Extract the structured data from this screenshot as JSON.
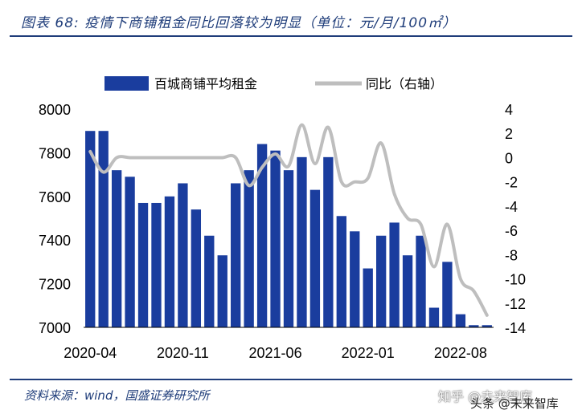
{
  "header": {
    "title": "图表 68: 疫情下商铺租金同比回落较为明显（单位：元/月/100㎡）"
  },
  "footer": {
    "source": "资料来源：wind，国盛证券研究所",
    "watermark_brand": "知乎 @未来智库",
    "watermark_overlay": "头条 @未来智库"
  },
  "colors": {
    "bar": "#1a3d9e",
    "line": "#bebebe",
    "accent": "#1f3d7a"
  },
  "chart_data": {
    "type": "bar+line",
    "x_tick_labels": [
      "2020-04",
      "2020-11",
      "2021-06",
      "2022-01",
      "2022-08"
    ],
    "left_axis": {
      "range": [
        7000,
        8000
      ],
      "ticks": [
        "7000",
        "7200",
        "7400",
        "7600",
        "7800",
        "8000"
      ]
    },
    "right_axis": {
      "range": [
        -14,
        4
      ],
      "ticks": [
        "-14",
        "-12",
        "-10",
        "-8",
        "-6",
        "-4",
        "-2",
        "0",
        "2",
        "4"
      ]
    },
    "series": [
      {
        "name": "百城商铺平均租金",
        "type": "bar",
        "axis": "left",
        "values": [
          7900,
          7900,
          7720,
          7690,
          7570,
          7570,
          7600,
          7660,
          7540,
          7420,
          7330,
          7660,
          7720,
          7840,
          7810,
          7720,
          7780,
          7630,
          7780,
          7510,
          7440,
          7270,
          7420,
          7480,
          7330,
          7420,
          7090,
          7300,
          7060,
          7010,
          7010
        ]
      },
      {
        "name": "同比（右轴）",
        "type": "line",
        "axis": "right",
        "values": [
          0.5,
          -1.2,
          0.0,
          0.0,
          0.0,
          0.0,
          0.0,
          0.0,
          0.0,
          0.0,
          0.0,
          0.0,
          -2.3,
          -0.8,
          0.3,
          -0.7,
          2.7,
          -0.5,
          2.5,
          -2.0,
          -2.0,
          -1.7,
          1.2,
          -3.0,
          -5.0,
          -5.5,
          -9.0,
          -5.5,
          -10.0,
          -11.0,
          -13.0
        ]
      }
    ]
  }
}
